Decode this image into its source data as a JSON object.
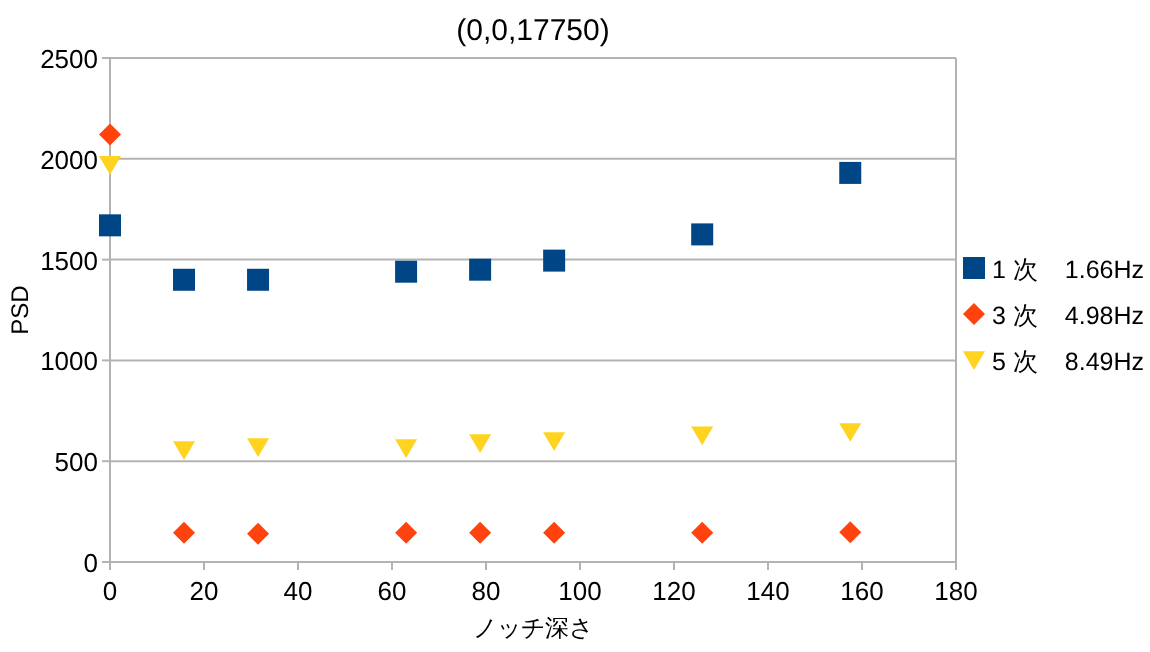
{
  "chart_data": {
    "type": "scatter",
    "title": "(0,0,17750)",
    "xlabel": "ノッチ深さ",
    "ylabel": "PSD",
    "x": [
      0,
      15.75,
      31.5,
      63,
      78.75,
      94.5,
      126,
      157.5
    ],
    "xlim": [
      0,
      180
    ],
    "xticks": [
      0,
      20,
      40,
      60,
      80,
      100,
      120,
      140,
      160,
      180
    ],
    "ylim": [
      0,
      2500
    ],
    "yticks": [
      0,
      500,
      1000,
      1500,
      2000,
      2500
    ],
    "grid": "y",
    "legend": "right",
    "series": [
      {
        "name": "1 次　1.66Hz",
        "color": "#004586",
        "marker": "square",
        "values": [
          1670,
          1400,
          1400,
          1440,
          1450,
          1495,
          1625,
          1930
        ]
      },
      {
        "name": "3 次　4.98Hz",
        "color": "#ff420e",
        "marker": "diamond",
        "values": [
          2120,
          145,
          140,
          145,
          145,
          145,
          145,
          148
        ]
      },
      {
        "name": "5 次　8.49Hz",
        "color": "#ffd320",
        "marker": "triangle",
        "values": [
          1970,
          555,
          570,
          565,
          590,
          600,
          628,
          645
        ]
      }
    ]
  }
}
